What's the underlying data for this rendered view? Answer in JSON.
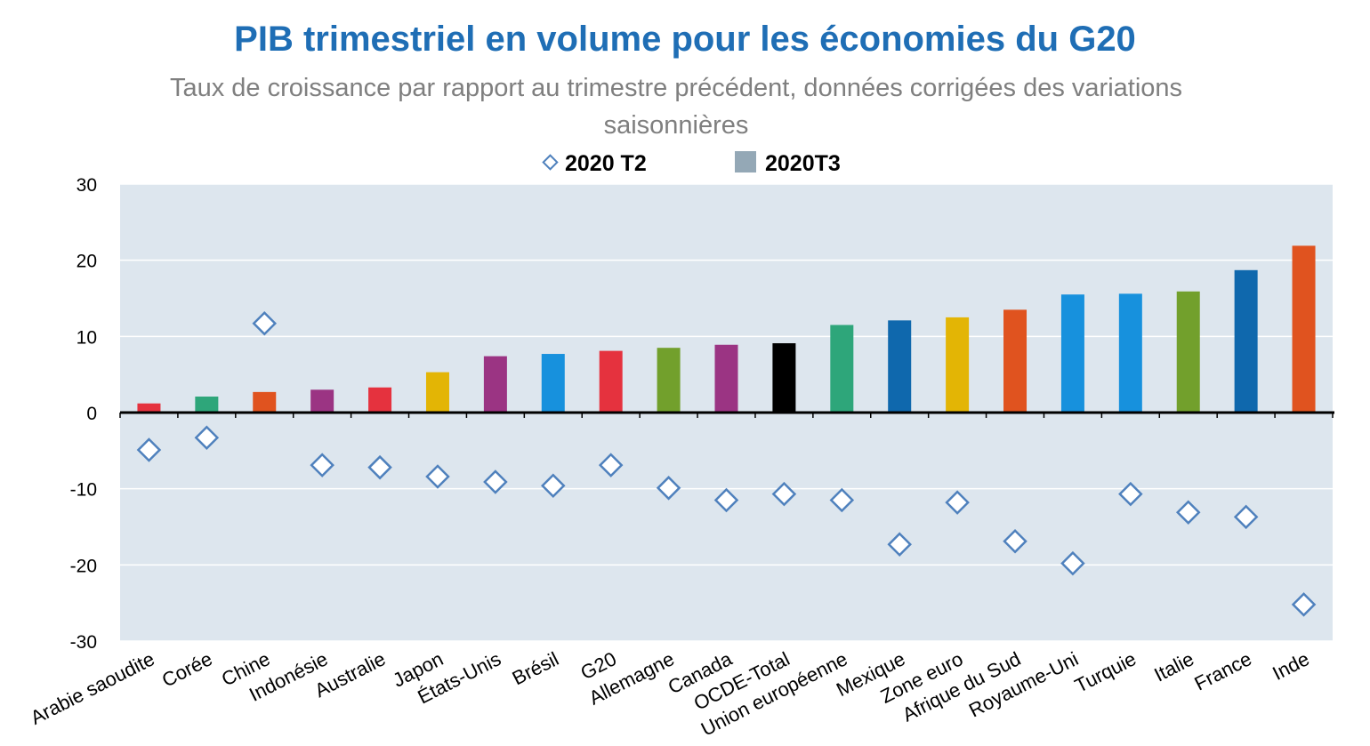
{
  "chart_data": {
    "type": "bar",
    "title": "PIB trimestriel en volume pour les économies du G20",
    "subtitle": "Taux de croissance par rapport au trimestre précédent, données corrigées des variations saisonnières",
    "ylim": [
      -30,
      30
    ],
    "yticks": [
      "30",
      "20",
      "10",
      "0",
      "-10",
      "-20",
      "-30"
    ],
    "ytick_values": [
      30,
      20,
      10,
      0,
      -10,
      -20,
      -30
    ],
    "grid": true,
    "legend_position": "top",
    "categories": [
      "Arabie saoudite",
      "Corée",
      "Chine",
      "Indonésie",
      "Australie",
      "Japon",
      "États-Unis",
      "Brésil",
      "G20",
      "Allemagne",
      "Canada",
      "OCDE-Total",
      "Union européenne",
      "Mexique",
      "Zone euro",
      "Afrique du Sud",
      "Royaume-Uni",
      "Turquie",
      "Italie",
      "France",
      "Inde"
    ],
    "series": [
      {
        "name": "2020T3",
        "type": "bar",
        "values": [
          1.2,
          2.1,
          2.7,
          3.0,
          3.3,
          5.3,
          7.4,
          7.7,
          8.1,
          8.5,
          8.9,
          9.1,
          11.5,
          12.1,
          12.5,
          13.5,
          15.5,
          15.6,
          15.9,
          18.7,
          21.9
        ]
      },
      {
        "name": "2020 T2",
        "type": "scatter",
        "values": [
          -4.9,
          -3.3,
          11.7,
          -6.9,
          -7.2,
          -8.4,
          -9.1,
          -9.6,
          -6.9,
          -9.9,
          -11.5,
          -10.7,
          -11.5,
          -17.3,
          -11.8,
          -16.9,
          -19.8,
          -10.7,
          -13.1,
          -13.7,
          -25.2
        ]
      }
    ],
    "bar_colors": [
      "#e5323e",
      "#2ea67a",
      "#e0531f",
      "#9b3483",
      "#e5323e",
      "#e3b505",
      "#9b3483",
      "#1791dd",
      "#e5323e",
      "#72a02c",
      "#9b3483",
      "#000000",
      "#2ea67a",
      "#0f68ad",
      "#e3b505",
      "#e0531f",
      "#1791dd",
      "#1791dd",
      "#72a02c",
      "#0f68ad",
      "#e0531f"
    ],
    "marker_color": "#4f81bd",
    "plot_background": "#dde6ee",
    "legend_box_color": "#94a8b6"
  }
}
